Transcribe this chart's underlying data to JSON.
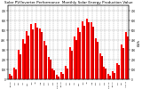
{
  "title": "Solar PV/Inverter Performance  Monthly Solar Energy Production Value",
  "bar_color_main": "#FF0000",
  "bar_color_prev": "#CC0000",
  "background_color": "#FFFFFF",
  "grid_color": "#999999",
  "ylabel_right": "kWh",
  "ylim": [
    0,
    750
  ],
  "yticks": [
    0,
    100,
    200,
    300,
    400,
    500,
    600,
    700
  ],
  "n_groups": 28,
  "values_a": [
    55,
    120,
    300,
    410,
    490,
    560,
    570,
    520,
    390,
    230,
    110,
    45,
    75,
    140,
    330,
    440,
    530,
    590,
    620,
    580,
    420,
    270,
    130,
    55,
    85,
    170,
    360,
    480
  ],
  "values_b": [
    40,
    100,
    260,
    370,
    450,
    510,
    530,
    480,
    350,
    200,
    90,
    35,
    55,
    110,
    290,
    400,
    480,
    545,
    580,
    540,
    380,
    240,
    110,
    40,
    65,
    145,
    320,
    440
  ],
  "xlabels": [
    "Jan 09",
    "Feb",
    "Mar",
    "Apr",
    "May",
    "Jun",
    "Jul",
    "Aug",
    "Sep",
    "Oct",
    "Nov",
    "Dec 09",
    "Jan 10",
    "Feb",
    "Mar",
    "Apr",
    "May",
    "Jun",
    "Jul",
    "Aug",
    "Sep",
    "Oct",
    "Nov",
    "Dec 10",
    "Jan 11",
    "Feb",
    "Mar",
    "Apr 11"
  ],
  "title_fontsize": 3.0,
  "tick_fontsize": 2.0,
  "ylabel_fontsize": 2.5
}
